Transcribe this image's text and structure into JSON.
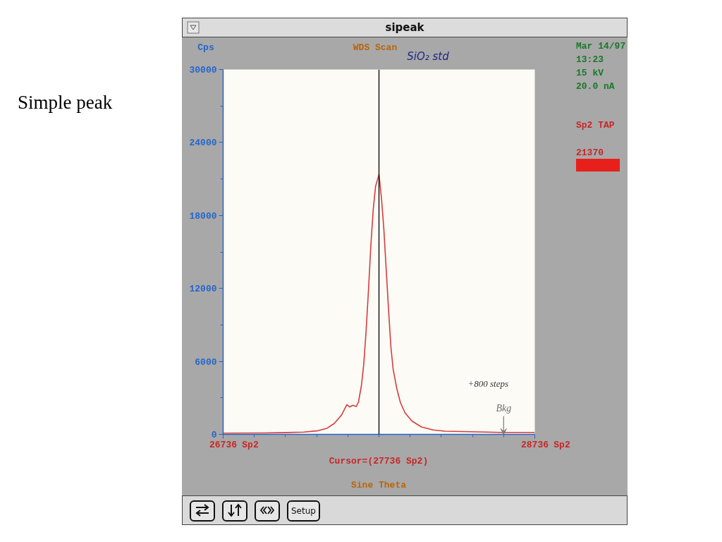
{
  "chart_data": {
    "type": "line",
    "title": "Simple peak",
    "subtitle": "sipeak",
    "xlabel": "Sine Theta",
    "ylabel": "Cps",
    "x": [
      26736,
      27000,
      27150,
      27253,
      27344,
      27404,
      27449,
      27495,
      27530,
      27548,
      27567,
      27590,
      27604,
      27623,
      27638,
      27653,
      27668,
      27684,
      27699,
      27714,
      27736,
      27752,
      27767,
      27782,
      27797,
      27812,
      27827,
      27850,
      27873,
      27903,
      27948,
      28009,
      28084,
      28160,
      28326,
      28523,
      28718,
      28736
    ],
    "values": [
      100,
      120,
      150,
      190,
      300,
      510,
      900,
      1580,
      2440,
      2250,
      2390,
      2290,
      2640,
      3990,
      5720,
      8430,
      11710,
      15570,
      18460,
      20390,
      21370,
      19430,
      16920,
      13640,
      10350,
      7270,
      5340,
      3790,
      2640,
      1770,
      1090,
      610,
      360,
      260,
      220,
      160,
      160,
      160
    ],
    "color": "#d83b3b",
    "xlim": [
      26736,
      28736
    ],
    "xticks": [
      26736,
      {
        "value": 26936,
        "label": null
      },
      {
        "value": 27136,
        "label": null
      },
      {
        "value": 27336,
        "label": null
      },
      {
        "value": 27536,
        "label": null
      },
      {
        "value": 27736,
        "label": null
      },
      {
        "value": 27936,
        "label": null
      },
      {
        "value": 28136,
        "label": null
      },
      {
        "value": 28336,
        "label": null
      },
      {
        "value": 28536,
        "label": null
      },
      28736
    ],
    "ylim": [
      0,
      30000
    ],
    "yticks": [
      0,
      {
        "value": 3000,
        "label": null
      },
      6000,
      {
        "value": 9000,
        "label": null
      },
      12000,
      {
        "value": 15000,
        "label": null
      },
      18000,
      {
        "value": 21000,
        "label": null
      },
      24000,
      {
        "value": 27000,
        "label": null
      },
      30000
    ],
    "ref_lines": [
      {
        "axis": "x",
        "value": 27736,
        "label": "Cursor=(27736 Sp2)",
        "color": "#000000"
      }
    ],
    "annotations": [
      "WDS Scan",
      "SiO₂ std",
      "Mar 14/97",
      "13:23",
      "15 kV",
      "20.0 nA",
      "Sp2 TAP",
      "21370",
      "+800 steps",
      {
        "text": "Bkg",
        "x": 28536,
        "y": 0
      },
      "Setup",
      "Sp2",
      "Sp2"
    ]
  }
}
